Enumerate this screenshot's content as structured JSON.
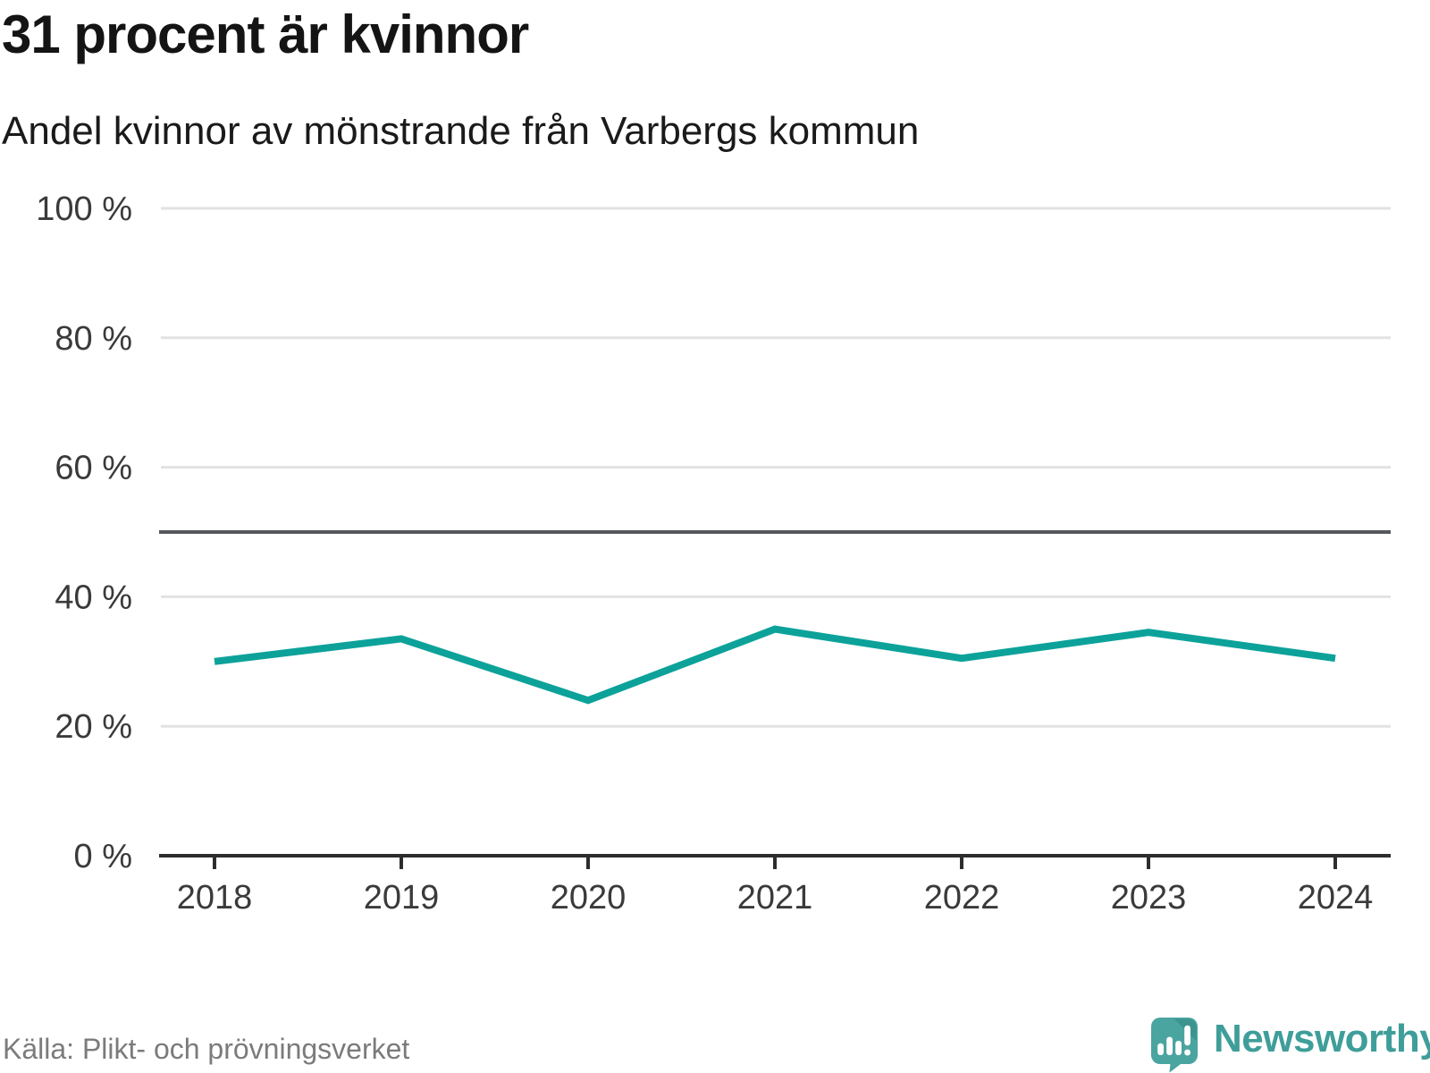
{
  "header": {
    "title": "31 procent är kvinnor"
  },
  "chart_data": {
    "type": "line",
    "title": "Andel kvinnor av mönstrande från Varbergs kommun",
    "x": [
      "2018",
      "2019",
      "2020",
      "2021",
      "2022",
      "2023",
      "2024"
    ],
    "series": [
      {
        "name": "Andel kvinnor av mönstrande",
        "color": "#0ca29a",
        "values": [
          30,
          33.5,
          24,
          35,
          30.5,
          34.5,
          30.5
        ]
      }
    ],
    "ylim": [
      0,
      100
    ],
    "yticks": [
      {
        "value": 0,
        "label": "0 %"
      },
      {
        "value": 20,
        "label": "20 %"
      },
      {
        "value": 40,
        "label": "40 %"
      },
      {
        "value": 60,
        "label": "60 %"
      },
      {
        "value": 80,
        "label": "80 %"
      },
      {
        "value": 100,
        "label": "100 %"
      }
    ],
    "reference_line": {
      "value": 50,
      "color": "#56575a"
    },
    "grid": true,
    "legend_position": "none"
  },
  "footer": {
    "source": "Källa: Plikt- och prövningsverket",
    "brand": "Newsworthy"
  },
  "colors": {
    "accent": "#0ca29a",
    "grid": "#e2e2e2",
    "axis": "#2d2d2d",
    "tick_text": "#3a3a3a",
    "muted_text": "#7b7b7b",
    "logo_teal": "#4aa49f",
    "logo_teal_dark": "#3d948f",
    "brand_text": "#3f9e99"
  }
}
